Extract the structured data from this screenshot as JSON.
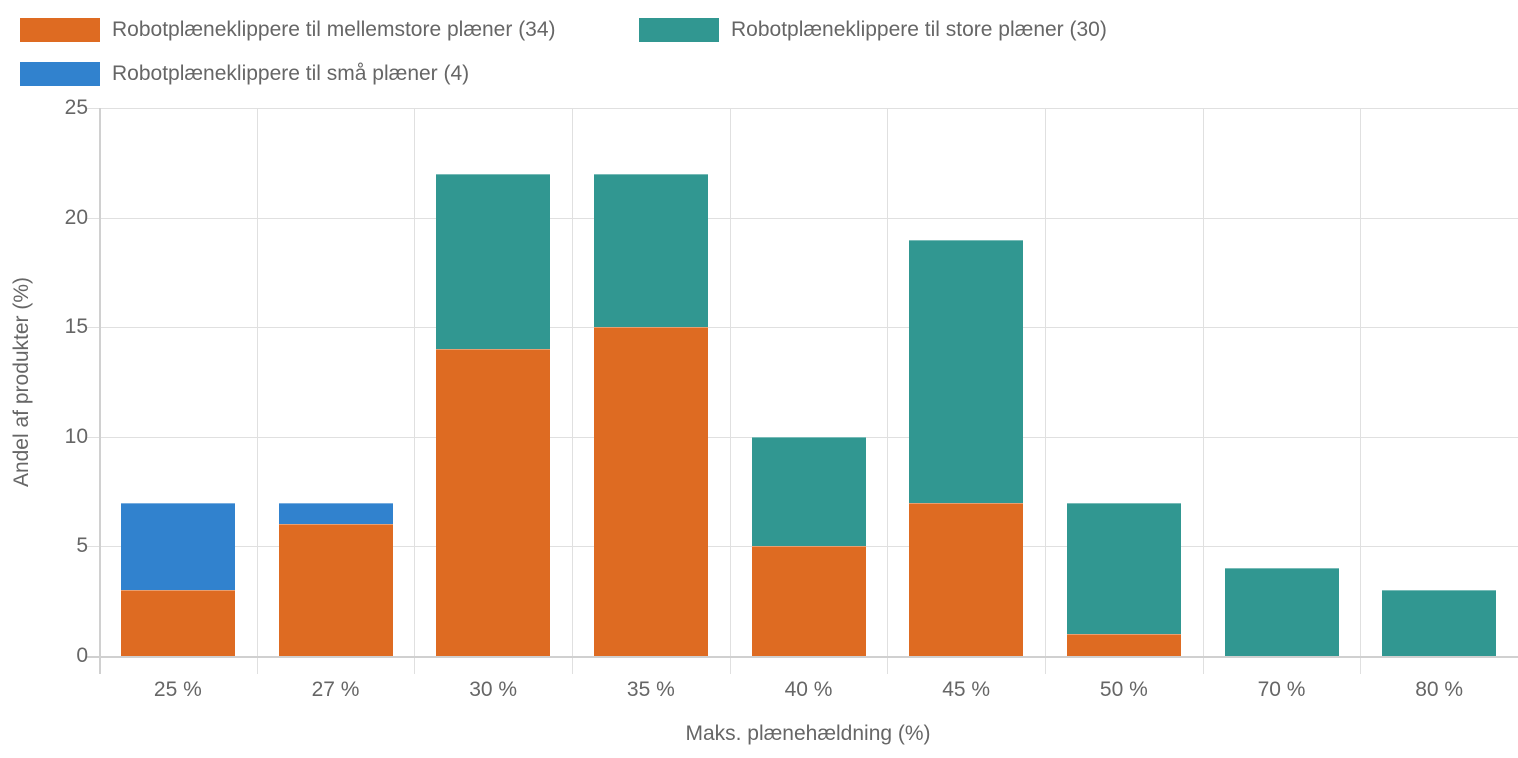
{
  "chart_data": {
    "type": "bar",
    "stacked": true,
    "title": "",
    "xlabel": "Maks. plænehældning (%)",
    "ylabel": "Andel af produkter (%)",
    "ylim": [
      0,
      25
    ],
    "yticks": [
      0,
      5,
      10,
      15,
      20,
      25
    ],
    "grid": true,
    "legend_position": "top",
    "categories": [
      "25 %",
      "27 %",
      "30 %",
      "35 %",
      "40 %",
      "45 %",
      "50 %",
      "70 %",
      "80 %"
    ],
    "series": [
      {
        "name": "Robotplæneklippere til mellemstore plæner (34)",
        "color": "#de6b22",
        "values": [
          3,
          6,
          14,
          15,
          5,
          7,
          1,
          0,
          0
        ]
      },
      {
        "name": "Robotplæneklippere til store plæner (30)",
        "color": "#319791",
        "values": [
          0,
          0,
          8,
          7,
          5,
          12,
          6,
          4,
          3
        ]
      },
      {
        "name": "Robotplæneklippere til små plæner (4)",
        "color": "#3182ce",
        "values": [
          4,
          1,
          0,
          0,
          0,
          0,
          0,
          0,
          0
        ]
      }
    ]
  },
  "legend": {
    "items": [
      {
        "label": "Robotplæneklippere til mellemstore plæner (34)",
        "color": "#de6b22"
      },
      {
        "label": "Robotplæneklippere til store plæner (30)",
        "color": "#319791"
      },
      {
        "label": "Robotplæneklippere til små plæner (4)",
        "color": "#3182ce"
      }
    ]
  },
  "axes": {
    "x_title": "Maks. plænehældning (%)",
    "y_title": "Andel af produkter (%)",
    "y_ticks": [
      "0",
      "5",
      "10",
      "15",
      "20",
      "25"
    ],
    "x_ticks": [
      "25 %",
      "27 %",
      "30 %",
      "35 %",
      "40 %",
      "45 %",
      "50 %",
      "70 %",
      "80 %"
    ]
  }
}
